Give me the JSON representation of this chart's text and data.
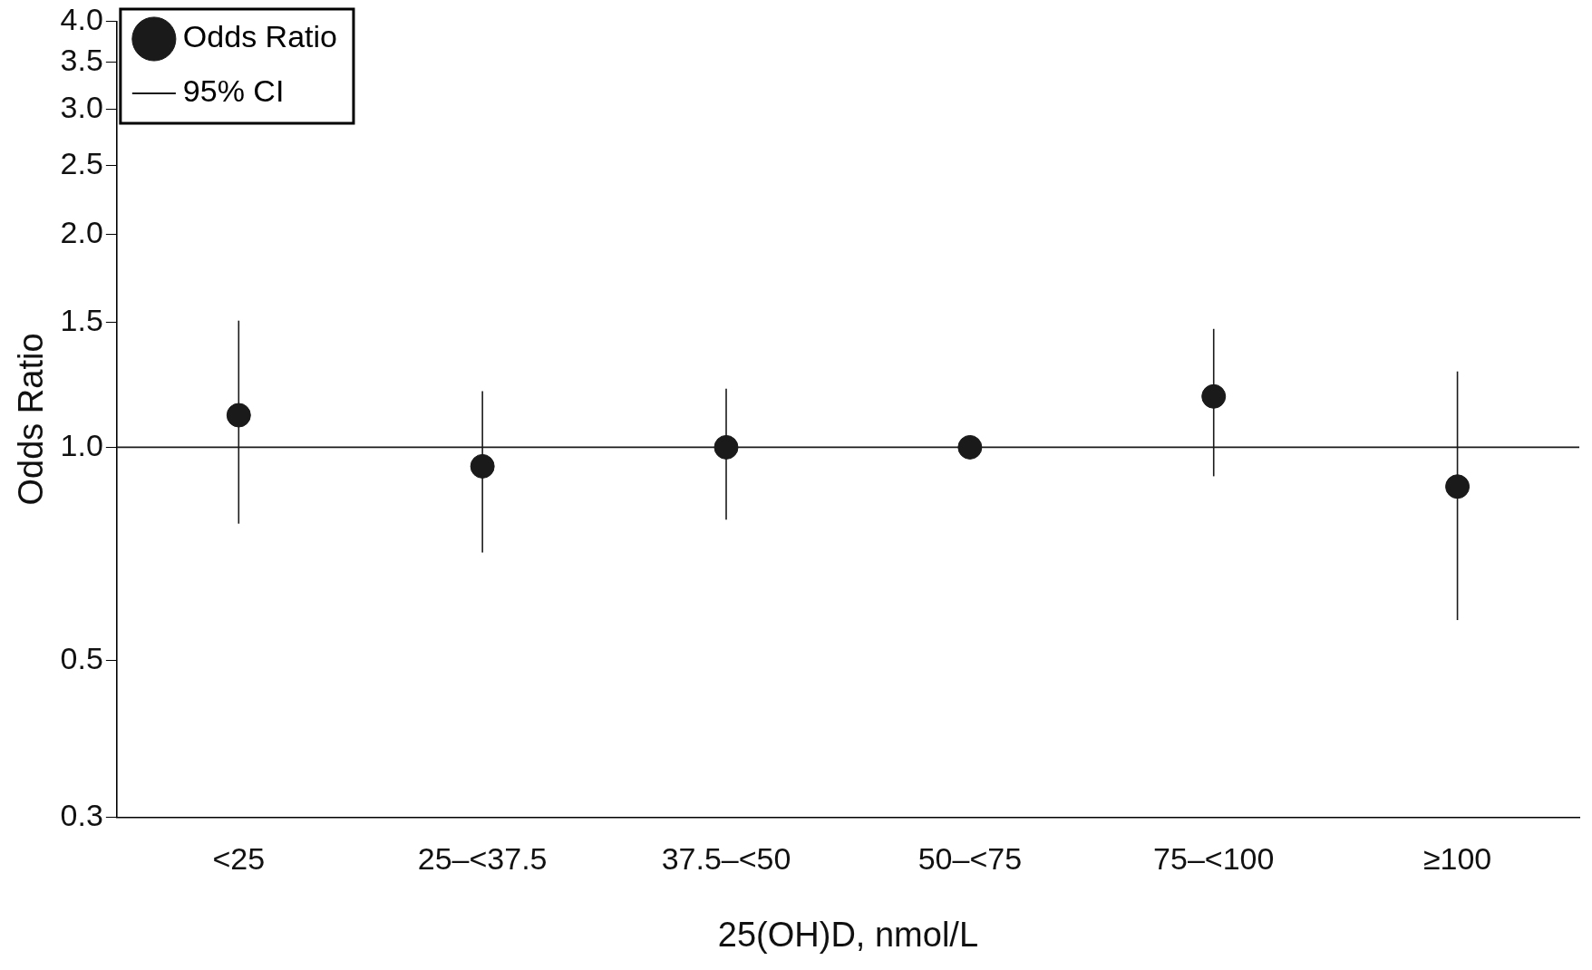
{
  "chart_data": {
    "type": "scatter",
    "xlabel": "25(OH)D, nmol/L",
    "ylabel": "Odds Ratio",
    "categories": [
      "<25",
      "25–<37.5",
      "37.5–<50",
      "50–<75",
      "75–<100",
      "≥100"
    ],
    "series": [
      {
        "name": "Odds Ratio",
        "color": "#1a1a1a",
        "values": [
          1.11,
          0.94,
          1.0,
          1.0,
          1.18,
          0.88
        ],
        "errors": [
          [
            0.78,
            1.51
          ],
          [
            0.71,
            1.2
          ],
          [
            0.79,
            1.21
          ],
          null,
          [
            0.91,
            1.47
          ],
          [
            0.57,
            1.28
          ]
        ]
      },
      {
        "name": "95% CI",
        "type": "line",
        "color": "#1a1a1a",
        "values": [
          null,
          null,
          null,
          null,
          null,
          null
        ]
      }
    ],
    "log": "y",
    "ylim": [
      0.3,
      4.0
    ],
    "yticks": [
      {
        "value": 0.3,
        "label": "0.3"
      },
      {
        "value": 0.5,
        "label": "0.5"
      },
      {
        "value": 1.0,
        "label": "1.0"
      },
      {
        "value": 1.5,
        "label": "1.5"
      },
      {
        "value": 2.0,
        "label": "2.0"
      },
      {
        "value": 2.5,
        "label": "2.5"
      },
      {
        "value": 3.0,
        "label": "3.0"
      },
      {
        "value": 3.5,
        "label": "3.5"
      },
      {
        "value": 4.0,
        "label": "4.0"
      }
    ],
    "ref_lines": [
      {
        "axis": "y",
        "value": 1.0,
        "color": "#1a1a1a"
      }
    ],
    "grid": false,
    "legend": "top left",
    "marker": "circle"
  }
}
